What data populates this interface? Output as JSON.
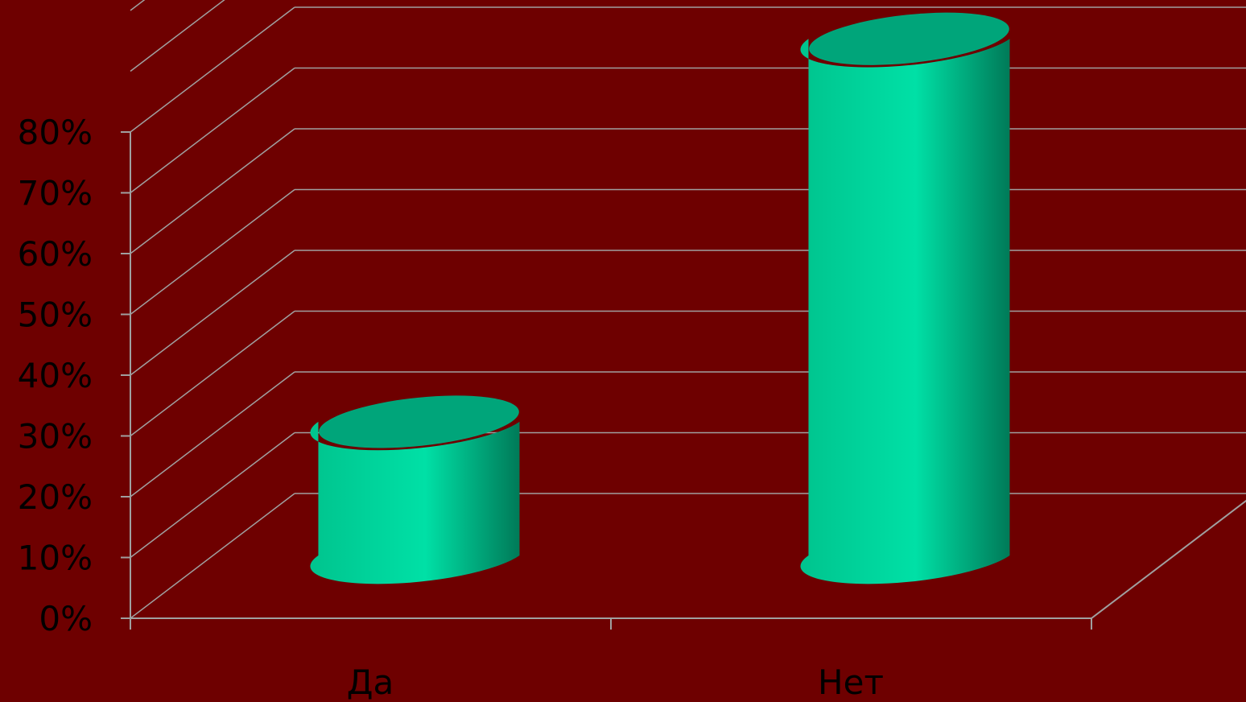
{
  "chart_data": {
    "type": "bar",
    "style": "3d-cylinder",
    "categories": [
      "Да",
      "Нет"
    ],
    "series": [
      {
        "values": [
          22,
          85
        ]
      }
    ],
    "yticks": [
      "0%",
      "10%",
      "20%",
      "30%",
      "40%",
      "50%",
      "60%",
      "70%",
      "80%"
    ],
    "ylim": [
      0,
      100
    ],
    "tick_step": 10,
    "grid": true,
    "legend": "none",
    "colors": {
      "background": "#6e0000",
      "gridline": "#a0a0a0",
      "bar_light": "#00e0a6",
      "bar_mid": "#00c48e",
      "bar_dark": "#007a58",
      "bar_top": "#00a57a",
      "text": "#000000"
    }
  }
}
